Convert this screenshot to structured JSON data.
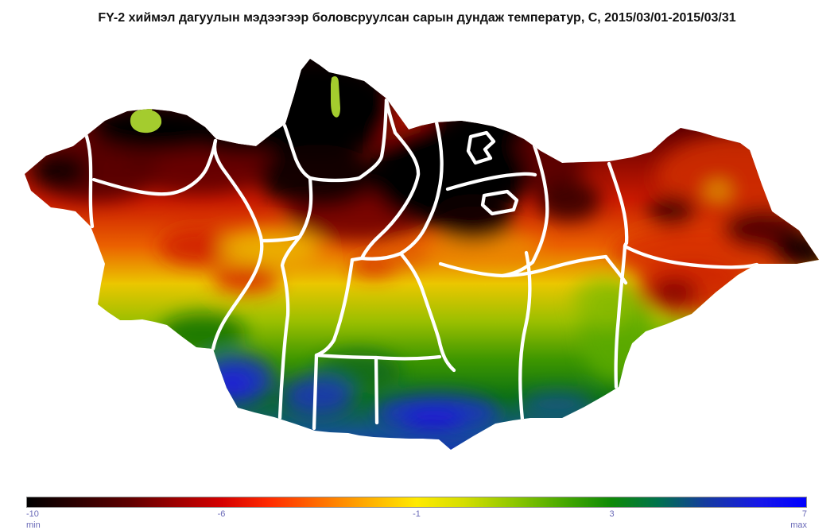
{
  "title": "FY-2 хиймэл дагуулын мэдээгээр боловсруулсан сарын дундаж температур, C, 2015/03/01-2015/03/31",
  "map": {
    "boundary_color": "#FFFFFF",
    "background_color": "#FFFFFF",
    "lake_color": "#A4CC2E"
  },
  "colorbar": {
    "ticks": [
      {
        "label": "-10",
        "pos": 0
      },
      {
        "label": "-6",
        "pos": 0.25
      },
      {
        "label": "-1",
        "pos": 0.5
      },
      {
        "label": "3",
        "pos": 0.75
      },
      {
        "label": "7",
        "pos": 1
      }
    ],
    "min_label": "min",
    "max_label": "max",
    "label_color": "#6A6AB8",
    "border_color": "#8A8A8A",
    "gradient_stops": [
      [
        0,
        "#000000"
      ],
      [
        0.06,
        "#2A0000"
      ],
      [
        0.13,
        "#5E0000"
      ],
      [
        0.19,
        "#9C0000"
      ],
      [
        0.25,
        "#D40000"
      ],
      [
        0.31,
        "#FF2A00"
      ],
      [
        0.38,
        "#FF7300"
      ],
      [
        0.44,
        "#FFB000"
      ],
      [
        0.5,
        "#FFEA00"
      ],
      [
        0.56,
        "#D5DE00"
      ],
      [
        0.62,
        "#93C900"
      ],
      [
        0.69,
        "#46A800"
      ],
      [
        0.75,
        "#0E8A06"
      ],
      [
        0.81,
        "#00724D"
      ],
      [
        0.87,
        "#153C9E"
      ],
      [
        0.94,
        "#1717E8"
      ],
      [
        1,
        "#0000FF"
      ]
    ]
  },
  "chart_data": {
    "type": "heatmap",
    "title": "FY-2 хиймэл дагуулын мэдээгээр боловсруулсан сарын дундаж температур, C, 2015/03/01-2015/03/31",
    "unit": "C",
    "scale_ticks": [
      -10,
      -6,
      -1,
      3,
      7
    ],
    "scale_min": -10,
    "scale_max": 7,
    "scale_min_label": "min",
    "scale_max_label": "max"
  }
}
